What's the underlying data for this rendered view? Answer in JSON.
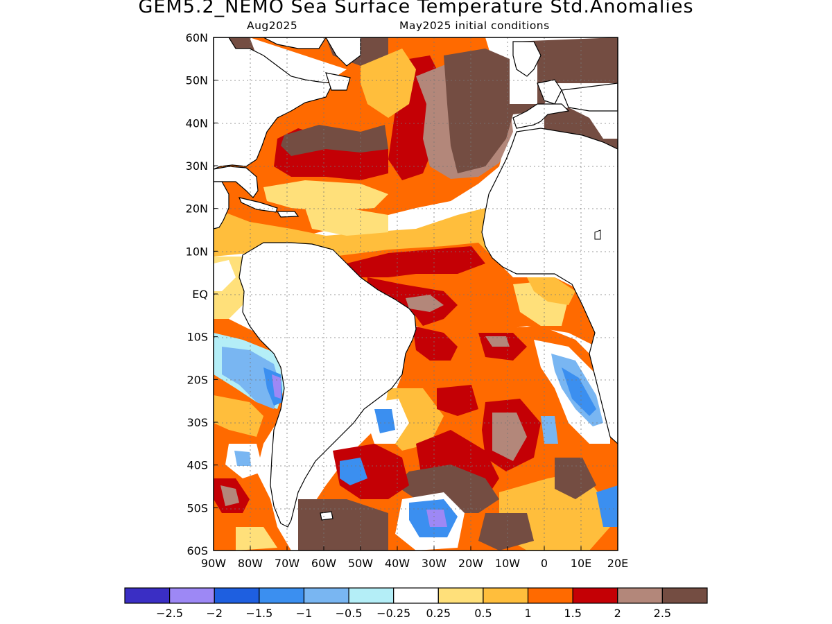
{
  "title": "GEM5.2_NEMO Sea Surface Temperature Std.Anomalies",
  "subtitle_left": "Aug2025",
  "subtitle_right": "May2025 initial conditions",
  "chart_data": {
    "type": "heatmap",
    "title": "GEM5.2_NEMO Sea Surface Temperature Std.Anomalies",
    "lon_range": [
      -90,
      20
    ],
    "lat_range": [
      -60,
      60
    ],
    "x_tick_labels": [
      "90W",
      "80W",
      "70W",
      "60W",
      "50W",
      "40W",
      "30W",
      "20W",
      "10W",
      "0",
      "10E",
      "20E"
    ],
    "y_tick_labels": [
      "60N",
      "50N",
      "40N",
      "30N",
      "20N",
      "10N",
      "EQ",
      "10S",
      "20S",
      "30S",
      "40S",
      "50S",
      "60S"
    ],
    "grid": true,
    "colorbar": {
      "ticks": [
        "-2.5",
        "-2",
        "-1.5",
        "-1",
        "-0.5",
        "-0.25",
        "0.25",
        "0.5",
        "1",
        "1.5",
        "2",
        "2.5"
      ],
      "colors": [
        "#3a2ec4",
        "#9d88f5",
        "#1e5fe0",
        "#3b8ff0",
        "#79b6f2",
        "#b4eef7",
        "#ffffff",
        "#ffe07a",
        "#ffbe3c",
        "#ff6a00",
        "#c40005",
        "#b3877a",
        "#744d42"
      ]
    }
  }
}
